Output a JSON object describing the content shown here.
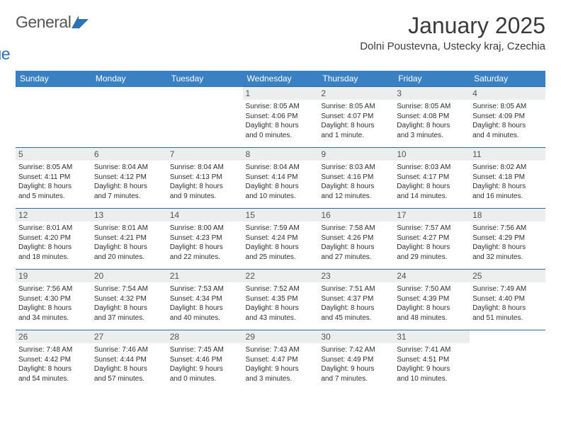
{
  "logo": {
    "text1": "General",
    "text2": "Blue"
  },
  "title": "January 2025",
  "location": "Dolni Poustevna, Ustecky kraj, Czechia",
  "colors": {
    "header_bg": "#3a81c4",
    "header_text": "#ffffff",
    "daynum_bg": "#eceded",
    "daynum_text": "#545454",
    "border": "#356a9e",
    "body_text": "#2e2e2e",
    "logo_gray": "#565656",
    "logo_blue": "#2b72b9"
  },
  "typography": {
    "title_fontsize": 32,
    "location_fontsize": 15,
    "header_fontsize": 12,
    "daynum_fontsize": 12,
    "details_fontsize": 10
  },
  "weekdays": [
    "Sunday",
    "Monday",
    "Tuesday",
    "Wednesday",
    "Thursday",
    "Friday",
    "Saturday"
  ],
  "weeks": [
    [
      null,
      null,
      null,
      {
        "n": "1",
        "sr": "Sunrise: 8:05 AM",
        "ss": "Sunset: 4:06 PM",
        "d1": "Daylight: 8 hours",
        "d2": "and 0 minutes."
      },
      {
        "n": "2",
        "sr": "Sunrise: 8:05 AM",
        "ss": "Sunset: 4:07 PM",
        "d1": "Daylight: 8 hours",
        "d2": "and 1 minute."
      },
      {
        "n": "3",
        "sr": "Sunrise: 8:05 AM",
        "ss": "Sunset: 4:08 PM",
        "d1": "Daylight: 8 hours",
        "d2": "and 3 minutes."
      },
      {
        "n": "4",
        "sr": "Sunrise: 8:05 AM",
        "ss": "Sunset: 4:09 PM",
        "d1": "Daylight: 8 hours",
        "d2": "and 4 minutes."
      }
    ],
    [
      {
        "n": "5",
        "sr": "Sunrise: 8:05 AM",
        "ss": "Sunset: 4:11 PM",
        "d1": "Daylight: 8 hours",
        "d2": "and 5 minutes."
      },
      {
        "n": "6",
        "sr": "Sunrise: 8:04 AM",
        "ss": "Sunset: 4:12 PM",
        "d1": "Daylight: 8 hours",
        "d2": "and 7 minutes."
      },
      {
        "n": "7",
        "sr": "Sunrise: 8:04 AM",
        "ss": "Sunset: 4:13 PM",
        "d1": "Daylight: 8 hours",
        "d2": "and 9 minutes."
      },
      {
        "n": "8",
        "sr": "Sunrise: 8:04 AM",
        "ss": "Sunset: 4:14 PM",
        "d1": "Daylight: 8 hours",
        "d2": "and 10 minutes."
      },
      {
        "n": "9",
        "sr": "Sunrise: 8:03 AM",
        "ss": "Sunset: 4:16 PM",
        "d1": "Daylight: 8 hours",
        "d2": "and 12 minutes."
      },
      {
        "n": "10",
        "sr": "Sunrise: 8:03 AM",
        "ss": "Sunset: 4:17 PM",
        "d1": "Daylight: 8 hours",
        "d2": "and 14 minutes."
      },
      {
        "n": "11",
        "sr": "Sunrise: 8:02 AM",
        "ss": "Sunset: 4:18 PM",
        "d1": "Daylight: 8 hours",
        "d2": "and 16 minutes."
      }
    ],
    [
      {
        "n": "12",
        "sr": "Sunrise: 8:01 AM",
        "ss": "Sunset: 4:20 PM",
        "d1": "Daylight: 8 hours",
        "d2": "and 18 minutes."
      },
      {
        "n": "13",
        "sr": "Sunrise: 8:01 AM",
        "ss": "Sunset: 4:21 PM",
        "d1": "Daylight: 8 hours",
        "d2": "and 20 minutes."
      },
      {
        "n": "14",
        "sr": "Sunrise: 8:00 AM",
        "ss": "Sunset: 4:23 PM",
        "d1": "Daylight: 8 hours",
        "d2": "and 22 minutes."
      },
      {
        "n": "15",
        "sr": "Sunrise: 7:59 AM",
        "ss": "Sunset: 4:24 PM",
        "d1": "Daylight: 8 hours",
        "d2": "and 25 minutes."
      },
      {
        "n": "16",
        "sr": "Sunrise: 7:58 AM",
        "ss": "Sunset: 4:26 PM",
        "d1": "Daylight: 8 hours",
        "d2": "and 27 minutes."
      },
      {
        "n": "17",
        "sr": "Sunrise: 7:57 AM",
        "ss": "Sunset: 4:27 PM",
        "d1": "Daylight: 8 hours",
        "d2": "and 29 minutes."
      },
      {
        "n": "18",
        "sr": "Sunrise: 7:56 AM",
        "ss": "Sunset: 4:29 PM",
        "d1": "Daylight: 8 hours",
        "d2": "and 32 minutes."
      }
    ],
    [
      {
        "n": "19",
        "sr": "Sunrise: 7:56 AM",
        "ss": "Sunset: 4:30 PM",
        "d1": "Daylight: 8 hours",
        "d2": "and 34 minutes."
      },
      {
        "n": "20",
        "sr": "Sunrise: 7:54 AM",
        "ss": "Sunset: 4:32 PM",
        "d1": "Daylight: 8 hours",
        "d2": "and 37 minutes."
      },
      {
        "n": "21",
        "sr": "Sunrise: 7:53 AM",
        "ss": "Sunset: 4:34 PM",
        "d1": "Daylight: 8 hours",
        "d2": "and 40 minutes."
      },
      {
        "n": "22",
        "sr": "Sunrise: 7:52 AM",
        "ss": "Sunset: 4:35 PM",
        "d1": "Daylight: 8 hours",
        "d2": "and 43 minutes."
      },
      {
        "n": "23",
        "sr": "Sunrise: 7:51 AM",
        "ss": "Sunset: 4:37 PM",
        "d1": "Daylight: 8 hours",
        "d2": "and 45 minutes."
      },
      {
        "n": "24",
        "sr": "Sunrise: 7:50 AM",
        "ss": "Sunset: 4:39 PM",
        "d1": "Daylight: 8 hours",
        "d2": "and 48 minutes."
      },
      {
        "n": "25",
        "sr": "Sunrise: 7:49 AM",
        "ss": "Sunset: 4:40 PM",
        "d1": "Daylight: 8 hours",
        "d2": "and 51 minutes."
      }
    ],
    [
      {
        "n": "26",
        "sr": "Sunrise: 7:48 AM",
        "ss": "Sunset: 4:42 PM",
        "d1": "Daylight: 8 hours",
        "d2": "and 54 minutes."
      },
      {
        "n": "27",
        "sr": "Sunrise: 7:46 AM",
        "ss": "Sunset: 4:44 PM",
        "d1": "Daylight: 8 hours",
        "d2": "and 57 minutes."
      },
      {
        "n": "28",
        "sr": "Sunrise: 7:45 AM",
        "ss": "Sunset: 4:46 PM",
        "d1": "Daylight: 9 hours",
        "d2": "and 0 minutes."
      },
      {
        "n": "29",
        "sr": "Sunrise: 7:43 AM",
        "ss": "Sunset: 4:47 PM",
        "d1": "Daylight: 9 hours",
        "d2": "and 3 minutes."
      },
      {
        "n": "30",
        "sr": "Sunrise: 7:42 AM",
        "ss": "Sunset: 4:49 PM",
        "d1": "Daylight: 9 hours",
        "d2": "and 7 minutes."
      },
      {
        "n": "31",
        "sr": "Sunrise: 7:41 AM",
        "ss": "Sunset: 4:51 PM",
        "d1": "Daylight: 9 hours",
        "d2": "and 10 minutes."
      },
      null
    ]
  ]
}
